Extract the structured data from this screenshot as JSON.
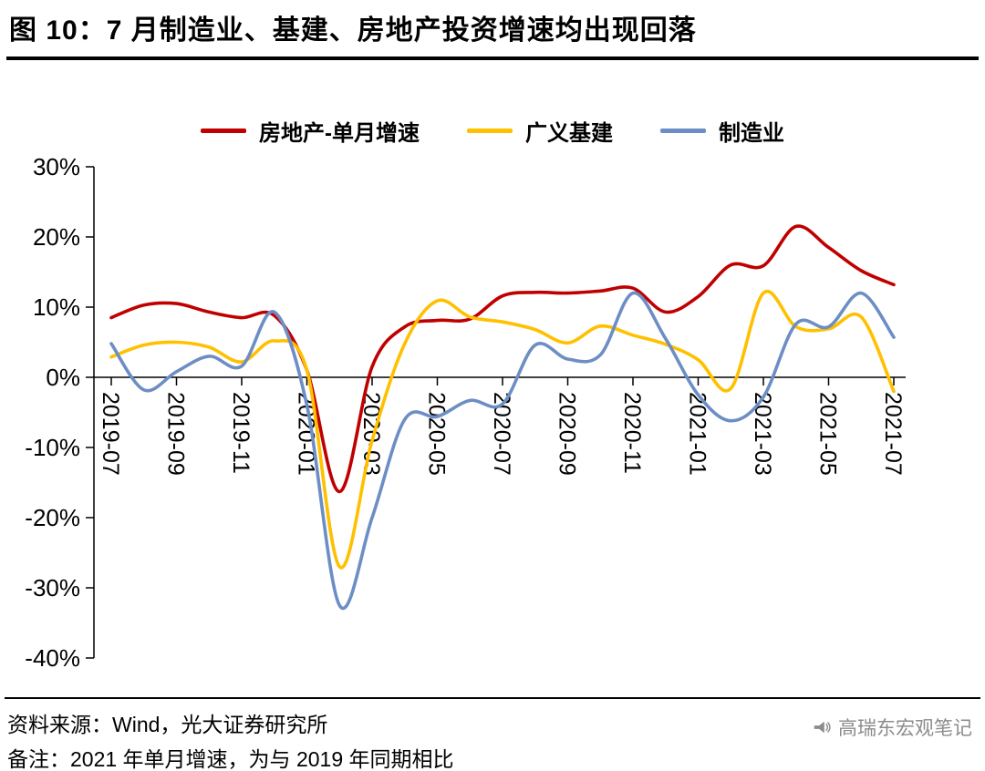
{
  "title": "图 10：7 月制造业、基建、房地产投资增速均出现回落",
  "legend": [
    {
      "label": "房地产-单月增速",
      "color": "#C00000"
    },
    {
      "label": "广义基建",
      "color": "#FFC000"
    },
    {
      "label": "制造业",
      "color": "#6D8EC4"
    }
  ],
  "chart_data": {
    "type": "line",
    "title": "图 10：7 月制造业、基建、房地产投资增速均出现回落",
    "x": [
      "2019-07",
      "2019-08",
      "2019-09",
      "2019-10",
      "2019-11",
      "2019-12",
      "2020-01",
      "2020-02",
      "2020-03",
      "2020-04",
      "2020-05",
      "2020-06",
      "2020-07",
      "2020-08",
      "2020-09",
      "2020-10",
      "2020-11",
      "2020-12",
      "2021-01",
      "2021-02",
      "2021-03",
      "2021-04",
      "2021-05",
      "2021-06",
      "2021-07"
    ],
    "x_tick_labels": [
      "2019-07",
      "2019-09",
      "2019-11",
      "2020-01",
      "2020-03",
      "2020-05",
      "2020-07",
      "2020-09",
      "2020-11",
      "2021-01",
      "2021-03",
      "2021-05",
      "2021-07"
    ],
    "y_ticks": [
      "30%",
      "20%",
      "10%",
      "0%",
      "-10%",
      "-20%",
      "-30%",
      "-40%"
    ],
    "ylim": [
      -40,
      30
    ],
    "y_unit": "%",
    "grid": false,
    "legend_position": "top-center",
    "series": [
      {
        "name": "房地产-单月增速",
        "color": "#C00000",
        "values": [
          8.5,
          10.3,
          10.5,
          9.3,
          8.5,
          8.8,
          1.0,
          -16.3,
          1.5,
          7.2,
          8.1,
          8.3,
          11.6,
          12.1,
          12.0,
          12.3,
          12.7,
          9.3,
          11.5,
          16.0,
          15.9,
          21.5,
          18.5,
          15.2,
          13.2
        ]
      },
      {
        "name": "广义基建",
        "color": "#FFC000",
        "values": [
          2.9,
          4.6,
          5.0,
          4.3,
          2.2,
          5.2,
          1.0,
          -27.0,
          -9.0,
          4.8,
          10.9,
          8.6,
          7.9,
          6.8,
          4.9,
          7.3,
          6.0,
          4.7,
          2.5,
          -1.6,
          12.0,
          7.2,
          6.9,
          8.6,
          -2.0
        ]
      },
      {
        "name": "制造业",
        "color": "#6D8EC4",
        "values": [
          4.8,
          -1.8,
          0.8,
          3.0,
          1.6,
          9.3,
          -4.0,
          -32.5,
          -20.0,
          -6.0,
          -5.6,
          -3.3,
          -3.8,
          4.6,
          2.6,
          3.2,
          12.0,
          5.5,
          -2.5,
          -6.2,
          -2.8,
          7.6,
          7.2,
          12.0,
          5.7
        ]
      }
    ]
  },
  "footer": {
    "source": "资料来源：Wind，光大证券研究所",
    "note": "备注：2021 年单月增速，为与 2019 年同期相比",
    "watermark": "高瑞东宏观笔记"
  }
}
